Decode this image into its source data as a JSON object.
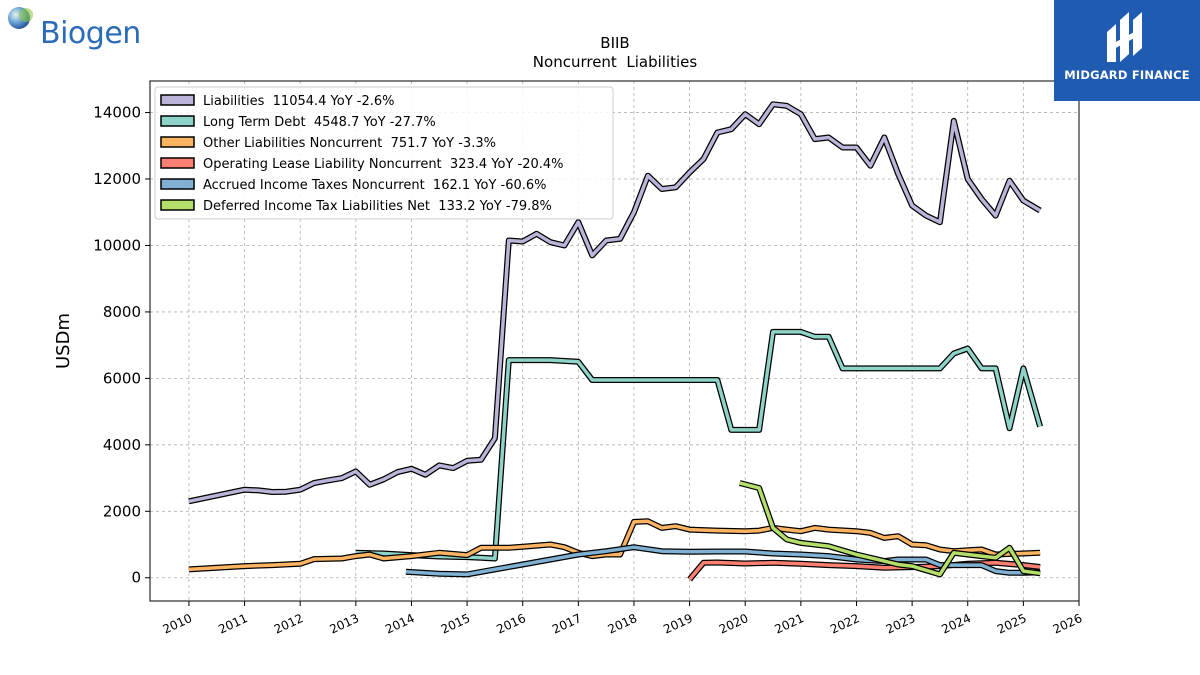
{
  "logo": {
    "company": "Biogen",
    "publisher": "MIDGARD FINANCE"
  },
  "chart_data": {
    "type": "line",
    "title": "BIIB",
    "subtitle": "Noncurrent  Liabilities",
    "ylabel": "USDm",
    "xlabel": "",
    "xlim": [
      2009.3,
      2026.0
    ],
    "ylim": [
      -700,
      14950
    ],
    "x_ticks": [
      "2010",
      "2011",
      "2012",
      "2013",
      "2014",
      "2015",
      "2016",
      "2017",
      "2018",
      "2019",
      "2020",
      "2021",
      "2022",
      "2023",
      "2024",
      "2025",
      "2026"
    ],
    "y_ticks": [
      "0",
      "2000",
      "4000",
      "6000",
      "8000",
      "10000",
      "12000",
      "14000"
    ],
    "grid": true,
    "legend_position": "top-left",
    "series": [
      {
        "name": "Liabilities",
        "legend": "Liabilities  11054.4 YoY -2.6%",
        "color": "#bcb4d8",
        "points": [
          [
            2010.0,
            2300
          ],
          [
            2011.0,
            2650
          ],
          [
            2011.25,
            2630
          ],
          [
            2011.5,
            2580
          ],
          [
            2011.75,
            2590
          ],
          [
            2012.0,
            2650
          ],
          [
            2012.25,
            2850
          ],
          [
            2012.5,
            2930
          ],
          [
            2012.75,
            3000
          ],
          [
            2013.0,
            3200
          ],
          [
            2013.25,
            2800
          ],
          [
            2013.5,
            2960
          ],
          [
            2013.75,
            3180
          ],
          [
            2014.0,
            3280
          ],
          [
            2014.25,
            3100
          ],
          [
            2014.5,
            3380
          ],
          [
            2014.75,
            3300
          ],
          [
            2015.0,
            3520
          ],
          [
            2015.25,
            3550
          ],
          [
            2015.5,
            4200
          ],
          [
            2015.75,
            10150
          ],
          [
            2016.0,
            10120
          ],
          [
            2016.25,
            10350
          ],
          [
            2016.5,
            10100
          ],
          [
            2016.75,
            10000
          ],
          [
            2017.0,
            10700
          ],
          [
            2017.25,
            9700
          ],
          [
            2017.5,
            10150
          ],
          [
            2017.75,
            10200
          ],
          [
            2018.0,
            11000
          ],
          [
            2018.25,
            12100
          ],
          [
            2018.5,
            11700
          ],
          [
            2018.75,
            11750
          ],
          [
            2019.0,
            12200
          ],
          [
            2019.25,
            12600
          ],
          [
            2019.5,
            13400
          ],
          [
            2019.75,
            13500
          ],
          [
            2020.0,
            13950
          ],
          [
            2020.25,
            13650
          ],
          [
            2020.5,
            14250
          ],
          [
            2020.75,
            14200
          ],
          [
            2021.0,
            13950
          ],
          [
            2021.25,
            13200
          ],
          [
            2021.5,
            13250
          ],
          [
            2021.75,
            12950
          ],
          [
            2022.0,
            12950
          ],
          [
            2022.25,
            12400
          ],
          [
            2022.5,
            13250
          ],
          [
            2022.75,
            12150
          ],
          [
            2023.0,
            11200
          ],
          [
            2023.25,
            10900
          ],
          [
            2023.5,
            10700
          ],
          [
            2023.75,
            13750
          ],
          [
            2024.0,
            12000
          ],
          [
            2024.25,
            11400
          ],
          [
            2024.5,
            10900
          ],
          [
            2024.75,
            11950
          ],
          [
            2025.0,
            11350
          ],
          [
            2025.3,
            11054
          ]
        ]
      },
      {
        "name": "Long Term Debt",
        "legend": "Long Term Debt  4548.7 YoY -27.7%",
        "color": "#8dd3c7",
        "points": [
          [
            2013.0,
            750
          ],
          [
            2013.5,
            730
          ],
          [
            2014.0,
            680
          ],
          [
            2014.5,
            640
          ],
          [
            2015.0,
            620
          ],
          [
            2015.25,
            600
          ],
          [
            2015.5,
            580
          ],
          [
            2015.75,
            6550
          ],
          [
            2016.0,
            6550
          ],
          [
            2016.5,
            6550
          ],
          [
            2017.0,
            6500
          ],
          [
            2017.25,
            5950
          ],
          [
            2017.5,
            5950
          ],
          [
            2018.0,
            5950
          ],
          [
            2019.0,
            5950
          ],
          [
            2019.5,
            5950
          ],
          [
            2019.75,
            4450
          ],
          [
            2020.0,
            4450
          ],
          [
            2020.25,
            4450
          ],
          [
            2020.5,
            7400
          ],
          [
            2021.0,
            7400
          ],
          [
            2021.25,
            7250
          ],
          [
            2021.5,
            7250
          ],
          [
            2021.75,
            6300
          ],
          [
            2022.0,
            6300
          ],
          [
            2023.0,
            6300
          ],
          [
            2023.5,
            6300
          ],
          [
            2023.75,
            6750
          ],
          [
            2024.0,
            6900
          ],
          [
            2024.25,
            6300
          ],
          [
            2024.5,
            6300
          ],
          [
            2024.75,
            4500
          ],
          [
            2025.0,
            6300
          ],
          [
            2025.3,
            4549
          ]
        ]
      },
      {
        "name": "Other Liabilities Noncurrent",
        "legend": "Other Liabilities Noncurrent  751.7 YoY -3.3%",
        "color": "#fdb462",
        "points": [
          [
            2010.0,
            250
          ],
          [
            2011.0,
            350
          ],
          [
            2011.5,
            380
          ],
          [
            2012.0,
            420
          ],
          [
            2012.25,
            560
          ],
          [
            2012.75,
            580
          ],
          [
            2013.0,
            650
          ],
          [
            2013.25,
            700
          ],
          [
            2013.5,
            580
          ],
          [
            2014.0,
            650
          ],
          [
            2014.5,
            750
          ],
          [
            2015.0,
            680
          ],
          [
            2015.25,
            900
          ],
          [
            2015.5,
            900
          ],
          [
            2015.75,
            900
          ],
          [
            2016.0,
            930
          ],
          [
            2016.5,
            1000
          ],
          [
            2016.75,
            920
          ],
          [
            2017.0,
            750
          ],
          [
            2017.25,
            650
          ],
          [
            2017.5,
            700
          ],
          [
            2017.75,
            700
          ],
          [
            2018.0,
            1680
          ],
          [
            2018.25,
            1700
          ],
          [
            2018.5,
            1500
          ],
          [
            2018.75,
            1550
          ],
          [
            2019.0,
            1450
          ],
          [
            2019.5,
            1420
          ],
          [
            2020.0,
            1400
          ],
          [
            2020.25,
            1420
          ],
          [
            2020.5,
            1500
          ],
          [
            2020.75,
            1450
          ],
          [
            2021.0,
            1400
          ],
          [
            2021.25,
            1500
          ],
          [
            2021.5,
            1450
          ],
          [
            2022.0,
            1400
          ],
          [
            2022.25,
            1350
          ],
          [
            2022.5,
            1200
          ],
          [
            2022.75,
            1250
          ],
          [
            2023.0,
            1000
          ],
          [
            2023.25,
            980
          ],
          [
            2023.5,
            850
          ],
          [
            2023.75,
            800
          ],
          [
            2024.0,
            830
          ],
          [
            2024.25,
            850
          ],
          [
            2024.5,
            700
          ],
          [
            2025.3,
            752
          ]
        ]
      },
      {
        "name": "Operating Lease Liability Noncurrent",
        "legend": "Operating Lease Liability Noncurrent  323.4 YoY -20.4%",
        "color": "#fb8072",
        "points": [
          [
            2019.0,
            -50
          ],
          [
            2019.25,
            450
          ],
          [
            2019.5,
            460
          ],
          [
            2020.0,
            430
          ],
          [
            2020.5,
            450
          ],
          [
            2021.0,
            420
          ],
          [
            2021.5,
            380
          ],
          [
            2022.0,
            350
          ],
          [
            2022.5,
            300
          ],
          [
            2023.0,
            320
          ],
          [
            2023.5,
            350
          ],
          [
            2024.0,
            420
          ],
          [
            2024.5,
            450
          ],
          [
            2025.0,
            380
          ],
          [
            2025.3,
            323
          ]
        ]
      },
      {
        "name": "Accrued Income Taxes Noncurrent",
        "legend": "Accrued Income Taxes Noncurrent  162.1 YoY -60.6%",
        "color": "#80b1d3",
        "points": [
          [
            2013.9,
            180
          ],
          [
            2014.5,
            120
          ],
          [
            2015.0,
            100
          ],
          [
            2015.5,
            250
          ],
          [
            2016.0,
            400
          ],
          [
            2016.5,
            550
          ],
          [
            2017.0,
            700
          ],
          [
            2017.5,
            800
          ],
          [
            2018.0,
            920
          ],
          [
            2018.5,
            800
          ],
          [
            2019.0,
            780
          ],
          [
            2019.5,
            790
          ],
          [
            2020.0,
            790
          ],
          [
            2020.5,
            730
          ],
          [
            2021.0,
            700
          ],
          [
            2021.5,
            650
          ],
          [
            2022.0,
            550
          ],
          [
            2022.5,
            500
          ],
          [
            2022.75,
            550
          ],
          [
            2023.0,
            550
          ],
          [
            2023.25,
            550
          ],
          [
            2023.5,
            380
          ],
          [
            2024.0,
            380
          ],
          [
            2024.25,
            380
          ],
          [
            2024.5,
            200
          ],
          [
            2024.75,
            150
          ],
          [
            2025.0,
            150
          ],
          [
            2025.3,
            162
          ]
        ]
      },
      {
        "name": "Deferred Income Tax Liabilities Net",
        "legend": "Deferred Income Tax Liabilities Net  133.2 YoY -79.8%",
        "color": "#b3de69",
        "points": [
          [
            2019.9,
            2850
          ],
          [
            2020.25,
            2700
          ],
          [
            2020.5,
            1500
          ],
          [
            2020.75,
            1150
          ],
          [
            2021.0,
            1050
          ],
          [
            2021.5,
            950
          ],
          [
            2022.0,
            700
          ],
          [
            2022.5,
            500
          ],
          [
            2022.75,
            400
          ],
          [
            2023.0,
            350
          ],
          [
            2023.5,
            100
          ],
          [
            2023.75,
            750
          ],
          [
            2024.0,
            700
          ],
          [
            2024.5,
            600
          ],
          [
            2024.75,
            900
          ],
          [
            2025.0,
            200
          ],
          [
            2025.3,
            133
          ]
        ]
      }
    ]
  }
}
